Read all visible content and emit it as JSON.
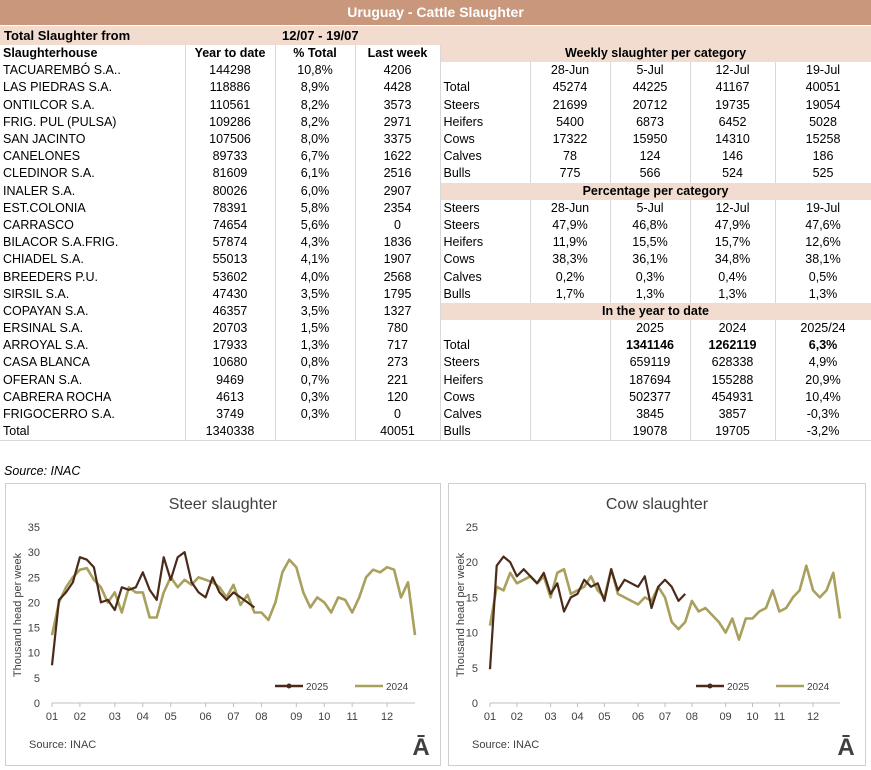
{
  "header": {
    "title": "Uruguay - Cattle Slaughter",
    "period_label": "Total Slaughter from",
    "period": "12/07 - 19/07"
  },
  "slaughterhouses": {
    "columns": [
      "Slaughterhouse",
      "Year to date",
      "% Total",
      "Last week"
    ],
    "rows": [
      [
        "TACUAREMBÓ S.A..",
        "144298",
        "10,8%",
        "4206"
      ],
      [
        "LAS PIEDRAS S.A.",
        "118886",
        "8,9%",
        "4428"
      ],
      [
        "ONTILCOR S.A.",
        "110561",
        "8,2%",
        "3573"
      ],
      [
        "FRIG. PUL (PULSA)",
        "109286",
        "8,2%",
        "2971"
      ],
      [
        "SAN JACINTO",
        "107506",
        "8,0%",
        "3375"
      ],
      [
        "CANELONES",
        "89733",
        "6,7%",
        "1622"
      ],
      [
        "CLEDINOR S.A.",
        "81609",
        "6,1%",
        "2516"
      ],
      [
        "INALER S.A.",
        "80026",
        "6,0%",
        "2907"
      ],
      [
        "EST.COLONIA",
        "78391",
        "5,8%",
        "2354"
      ],
      [
        "CARRASCO",
        "74654",
        "5,6%",
        "0"
      ],
      [
        "BILACOR S.A.FRIG.",
        "57874",
        "4,3%",
        "1836"
      ],
      [
        "CHIADEL S.A.",
        "55013",
        "4,1%",
        "1907"
      ],
      [
        "BREEDERS P.U.",
        "53602",
        "4,0%",
        "2568"
      ],
      [
        "SIRSIL S.A.",
        "47430",
        "3,5%",
        "1795"
      ],
      [
        "COPAYAN S.A.",
        "46357",
        "3,5%",
        "1327"
      ],
      [
        "ERSINAL S.A.",
        "20703",
        "1,5%",
        "780"
      ],
      [
        "ARROYAL S.A.",
        "17933",
        "1,3%",
        "717"
      ],
      [
        "CASA BLANCA",
        "10680",
        "0,8%",
        "273"
      ],
      [
        "OFERAN S.A.",
        "9469",
        "0,7%",
        "221"
      ],
      [
        "CABRERA ROCHA",
        "4613",
        "0,3%",
        "120"
      ],
      [
        "FRIGOCERRO S.A.",
        "3749",
        "0,3%",
        "0"
      ]
    ],
    "total": {
      "label": "Total",
      "year_to_date": "1340338",
      "last_week": "40051"
    }
  },
  "weekly": {
    "title": "Weekly slaughter per category",
    "dates": [
      "28-Jun",
      "5-Jul",
      "12-Jul",
      "19-Jul"
    ],
    "rows": [
      {
        "label": "Total",
        "values": [
          "45274",
          "44225",
          "41167",
          "40051"
        ]
      },
      {
        "label": "Steers",
        "values": [
          "21699",
          "20712",
          "19735",
          "19054"
        ]
      },
      {
        "label": "Heifers",
        "values": [
          "5400",
          "6873",
          "6452",
          "5028"
        ]
      },
      {
        "label": "Cows",
        "values": [
          "17322",
          "15950",
          "14310",
          "15258"
        ]
      },
      {
        "label": "Calves",
        "values": [
          "78",
          "124",
          "146",
          "186"
        ]
      },
      {
        "label": "Bulls",
        "values": [
          "775",
          "566",
          "524",
          "525"
        ]
      }
    ]
  },
  "percentage": {
    "title": "Percentage per category",
    "header_label": "Steers",
    "dates": [
      "28-Jun",
      "5-Jul",
      "12-Jul",
      "19-Jul"
    ],
    "rows": [
      {
        "label": "Steers",
        "values": [
          "47,9%",
          "46,8%",
          "47,9%",
          "47,6%"
        ]
      },
      {
        "label": "Heifers",
        "values": [
          "11,9%",
          "15,5%",
          "15,7%",
          "12,6%"
        ]
      },
      {
        "label": "Cows",
        "values": [
          "38,3%",
          "36,1%",
          "34,8%",
          "38,1%"
        ]
      },
      {
        "label": "Calves",
        "values": [
          "0,2%",
          "0,3%",
          "0,4%",
          "0,5%"
        ]
      },
      {
        "label": "Bulls",
        "values": [
          "1,7%",
          "1,3%",
          "1,3%",
          "1,3%"
        ]
      }
    ]
  },
  "year_to_date": {
    "title": "In the year to date",
    "columns": [
      "2025",
      "2024",
      "2025/24"
    ],
    "rows": [
      {
        "label": "Total",
        "values": [
          "1341146",
          "1262119",
          "6,3%"
        ]
      },
      {
        "label": "Steers",
        "values": [
          "659119",
          "628338",
          "4,9%"
        ]
      },
      {
        "label": "Heifers",
        "values": [
          "187694",
          "155288",
          "20,9%"
        ]
      },
      {
        "label": "Cows",
        "values": [
          "502377",
          "454931",
          "10,4%"
        ]
      },
      {
        "label": "Calves",
        "values": [
          "3845",
          "3857",
          "-0,3%"
        ]
      },
      {
        "label": "Bulls",
        "values": [
          "19078",
          "19705",
          "-3,2%"
        ]
      }
    ]
  },
  "table_source": "Source: INAC",
  "chart_data": [
    {
      "type": "line",
      "title": "Steer slaughter",
      "y_label": "Thousand head per week",
      "categories": [
        "01",
        null,
        null,
        null,
        "02",
        null,
        null,
        null,
        null,
        "03",
        null,
        null,
        null,
        "04",
        null,
        null,
        null,
        "05",
        null,
        null,
        null,
        null,
        "06",
        null,
        null,
        null,
        "07",
        null,
        null,
        null,
        "08",
        null,
        null,
        null,
        null,
        "09",
        null,
        null,
        null,
        "10",
        null,
        null,
        null,
        "11",
        null,
        null,
        null,
        null,
        "12",
        null,
        null,
        null,
        null
      ],
      "ylim": [
        0,
        35
      ],
      "yticks": [
        0,
        5,
        10,
        15,
        20,
        25,
        30,
        35
      ],
      "series": [
        {
          "name": "2025",
          "color": "#4a2a1a",
          "values": [
            7.5,
            20.5,
            22,
            24,
            29,
            28.5,
            27,
            20,
            20.5,
            18.5,
            23,
            22.5,
            23,
            26,
            22.5,
            20.5,
            29,
            24.5,
            29,
            30,
            24,
            22,
            21,
            25,
            22,
            20.5,
            22,
            21,
            20,
            19,
            null,
            null,
            null,
            null,
            null,
            null,
            null,
            null,
            null,
            null,
            null,
            null,
            null,
            null,
            null,
            null,
            null,
            null,
            null,
            null,
            null,
            null,
            null
          ]
        },
        {
          "name": "2024",
          "color": "#a8a05c",
          "values": [
            13.5,
            20,
            23,
            25,
            26.5,
            26.8,
            24.5,
            23,
            20,
            22,
            18,
            23,
            22,
            22,
            17,
            17,
            22,
            25,
            23,
            24.5,
            23.5,
            25,
            24.5,
            24,
            23,
            21,
            23.5,
            19.5,
            21.5,
            18,
            18,
            16.5,
            20,
            26,
            28.5,
            27,
            22,
            19,
            21,
            20,
            18,
            21,
            20.5,
            18,
            21,
            25,
            26.5,
            26,
            27,
            26.5,
            21,
            24,
            13.5
          ]
        }
      ],
      "source": "Source: INAC",
      "logo": "Ā"
    },
    {
      "type": "line",
      "title": "Cow slaughter",
      "y_label": "Thousand head per week",
      "categories": [
        "01",
        null,
        null,
        null,
        "02",
        null,
        null,
        null,
        null,
        "03",
        null,
        null,
        null,
        "04",
        null,
        null,
        null,
        "05",
        null,
        null,
        null,
        null,
        "06",
        null,
        null,
        null,
        "07",
        null,
        null,
        null,
        "08",
        null,
        null,
        null,
        null,
        "09",
        null,
        null,
        null,
        "10",
        null,
        null,
        null,
        "11",
        null,
        null,
        null,
        null,
        "12",
        null,
        null,
        null,
        null
      ],
      "ylim": [
        0,
        25
      ],
      "yticks": [
        0,
        5,
        10,
        15,
        20,
        25
      ],
      "series": [
        {
          "name": "2025",
          "color": "#4a2a1a",
          "values": [
            4.8,
            19.5,
            20.8,
            20,
            18,
            19,
            18,
            17,
            18.5,
            15.5,
            17,
            13,
            15,
            15.5,
            17.5,
            16.5,
            17,
            14.5,
            19,
            16,
            17.5,
            17,
            16.5,
            18,
            13.5,
            16.5,
            17.5,
            16.5,
            14.5,
            15.5,
            null,
            null,
            null,
            null,
            null,
            null,
            null,
            null,
            null,
            null,
            null,
            null,
            null,
            null,
            null,
            null,
            null,
            null,
            null,
            null,
            null,
            null,
            null
          ]
        },
        {
          "name": "2024",
          "color": "#a8a05c",
          "values": [
            11,
            16.5,
            16,
            18.5,
            17,
            17.5,
            18,
            17,
            18,
            15,
            18.5,
            19,
            15.5,
            16,
            16.5,
            18,
            16,
            15,
            19,
            15.5,
            15,
            14.5,
            14,
            15,
            14.5,
            16.5,
            15,
            11.5,
            10.5,
            11.5,
            14.5,
            13,
            13.5,
            12.5,
            11.5,
            10,
            12,
            9,
            12,
            12,
            13,
            13.5,
            16,
            13,
            13.5,
            15,
            16,
            19.5,
            16,
            15,
            16,
            18.5,
            12
          ]
        }
      ],
      "source": "Source: INAC",
      "logo": "Ā"
    }
  ]
}
